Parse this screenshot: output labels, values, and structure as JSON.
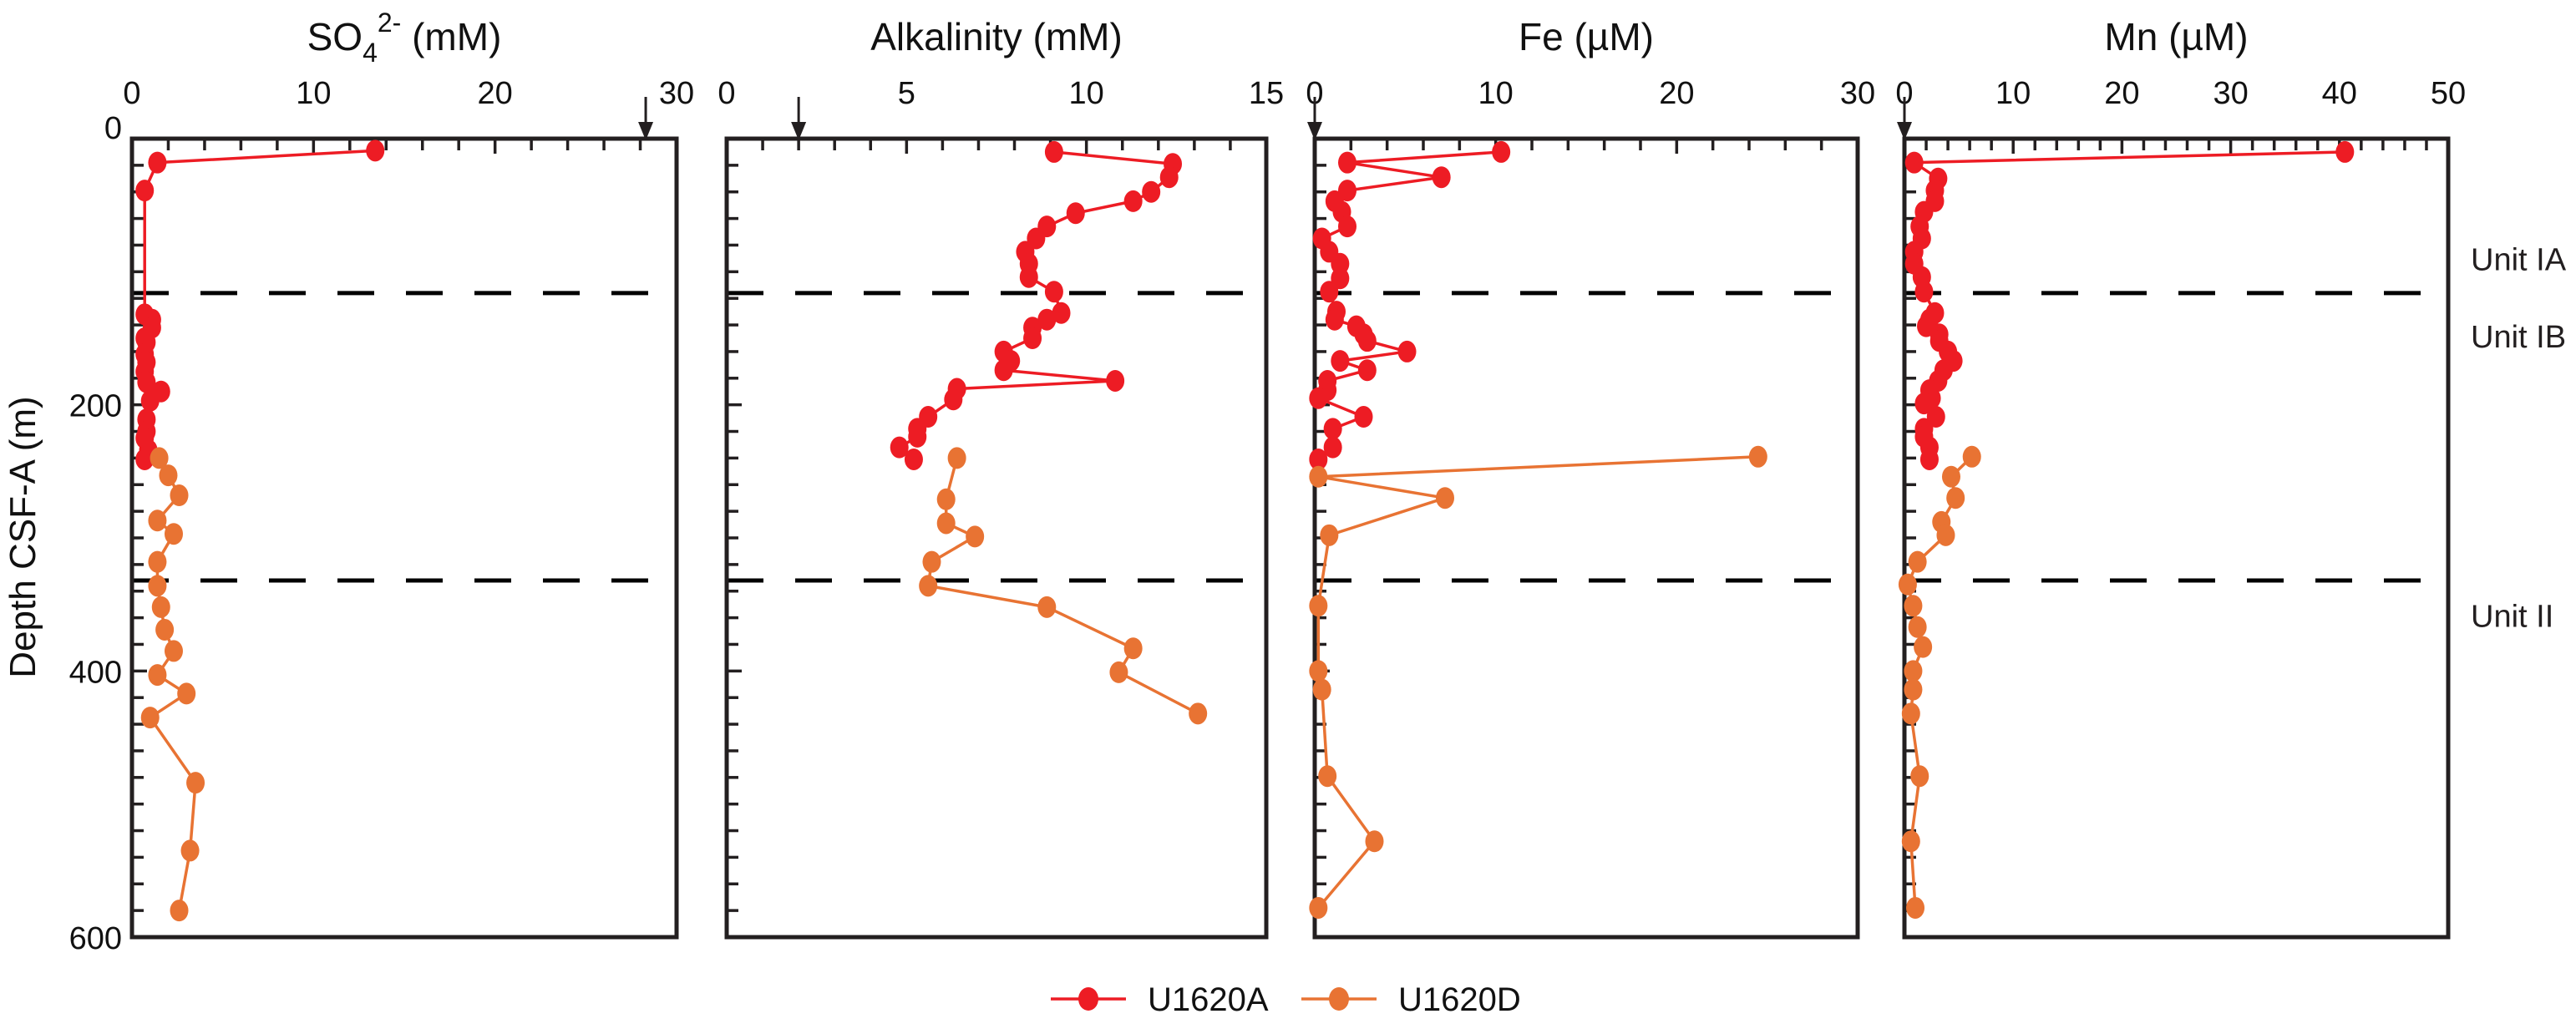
{
  "figure": {
    "ylabel": "Depth CSF-A (m)",
    "unit_labels": [
      {
        "text": "Unit IA",
        "anchor_depth": 90
      },
      {
        "text": "Unit IB",
        "anchor_depth": 148
      },
      {
        "text": "Unit II",
        "anchor_depth": 358
      }
    ],
    "legend": [
      {
        "name": "U1620A",
        "color": "#ed1c24"
      },
      {
        "name": "U1620D",
        "color": "#e87333"
      }
    ]
  },
  "chart_data": [
    {
      "type": "line",
      "title": "SO42- (mM)",
      "title_parts": {
        "base": "SO",
        "sub": "4",
        "sup": "2-",
        "unit": " (mM)"
      },
      "xlabel": "SO4 2- (mM)",
      "ylabel": "Depth CSF-A (m)",
      "xlim": [
        0,
        30
      ],
      "ylim": [
        600,
        0
      ],
      "xticks": [
        "0",
        "10",
        "20",
        "30"
      ],
      "xtick_values": [
        0,
        10,
        20,
        30
      ],
      "xminor_step": 2,
      "yticks": [
        "0",
        "200",
        "400",
        "600"
      ],
      "ytick_values": [
        0,
        200,
        400,
        600
      ],
      "yminor_step": 20,
      "seawater_arrow": 28.3,
      "unit_boundaries": [
        116,
        332
      ],
      "grid": false,
      "series": [
        {
          "name": "U1620A",
          "color": "#ed1c24",
          "depth": [
            9,
            18,
            39,
            132,
            136,
            142,
            150,
            153,
            162,
            168,
            175,
            183,
            190,
            197,
            211,
            220,
            225,
            234,
            241
          ],
          "values": [
            13.4,
            1.4,
            0.7,
            0.7,
            1.1,
            1.1,
            0.7,
            0.8,
            0.7,
            0.8,
            0.7,
            0.8,
            1.6,
            1.0,
            0.8,
            0.8,
            0.7,
            0.9,
            0.7
          ]
        },
        {
          "name": "U1620D",
          "color": "#e87333",
          "depth": [
            240,
            253,
            268,
            287,
            297,
            318,
            336,
            352,
            369,
            385,
            403,
            417,
            435,
            484,
            535,
            580
          ],
          "values": [
            1.5,
            2.0,
            2.6,
            1.4,
            2.3,
            1.4,
            1.4,
            1.6,
            1.8,
            2.3,
            1.4,
            3.0,
            1.0,
            3.5,
            3.2,
            2.6
          ]
        }
      ]
    },
    {
      "type": "line",
      "title": "Alkalinity (mM)",
      "xlabel": "Alkalinity (mM)",
      "ylabel": "Depth CSF-A (m)",
      "xlim": [
        0,
        15
      ],
      "ylim": [
        600,
        0
      ],
      "xticks": [
        "0",
        "5",
        "10",
        "15"
      ],
      "xtick_values": [
        0,
        5,
        10,
        15
      ],
      "xminor_step": 1,
      "yminor_step": 20,
      "seawater_arrow": 2.0,
      "unit_boundaries": [
        116,
        332
      ],
      "grid": false,
      "series": [
        {
          "name": "U1620A",
          "color": "#ed1c24",
          "depth": [
            10,
            19,
            29,
            40,
            47,
            56,
            66,
            75,
            85,
            94,
            104,
            115,
            131,
            136,
            142,
            150,
            160,
            167,
            174,
            182,
            188,
            196,
            209,
            218,
            224,
            232,
            241
          ],
          "values": [
            9.1,
            12.4,
            12.3,
            11.8,
            11.3,
            9.7,
            8.9,
            8.6,
            8.3,
            8.4,
            8.4,
            9.1,
            9.3,
            8.9,
            8.5,
            8.5,
            7.7,
            7.9,
            7.7,
            10.8,
            6.4,
            6.3,
            5.6,
            5.3,
            5.3,
            4.8,
            5.2
          ]
        },
        {
          "name": "U1620D",
          "color": "#e87333",
          "depth": [
            240,
            271,
            289,
            299,
            318,
            336,
            352,
            383,
            401,
            432
          ],
          "values": [
            6.4,
            6.1,
            6.1,
            6.9,
            5.7,
            5.6,
            8.9,
            11.3,
            10.9,
            13.1
          ]
        }
      ]
    },
    {
      "type": "line",
      "title": "Fe (µM)",
      "xlabel": "Fe (µM)",
      "ylabel": "Depth CSF-A (m)",
      "xlim": [
        0,
        30
      ],
      "ylim": [
        600,
        0
      ],
      "xticks": [
        "0",
        "10",
        "20",
        "30"
      ],
      "xtick_values": [
        0,
        10,
        20,
        30
      ],
      "xminor_step": 2,
      "yminor_step": 20,
      "seawater_arrow": 0,
      "unit_boundaries": [
        116,
        332
      ],
      "grid": false,
      "series": [
        {
          "name": "U1620A",
          "color": "#ed1c24",
          "depth": [
            10,
            18,
            29,
            39,
            47,
            55,
            66,
            75,
            85,
            94,
            105,
            115,
            130,
            136,
            141,
            147,
            152,
            160,
            167,
            174,
            182,
            189,
            195,
            209,
            218,
            232,
            241
          ],
          "values": [
            10.3,
            1.8,
            7.0,
            1.8,
            1.1,
            1.5,
            1.8,
            0.4,
            0.8,
            1.4,
            1.4,
            0.8,
            1.2,
            1.1,
            2.3,
            2.7,
            2.9,
            5.1,
            1.4,
            2.9,
            0.7,
            0.7,
            0.2,
            2.7,
            1.0,
            1.0,
            0.2
          ]
        },
        {
          "name": "U1620D",
          "color": "#e87333",
          "depth": [
            239,
            254,
            270,
            298,
            351,
            400,
            414,
            479,
            528,
            578
          ],
          "values": [
            24.5,
            0.2,
            7.2,
            0.8,
            0.2,
            0.2,
            0.4,
            0.7,
            3.3,
            0.2
          ]
        }
      ]
    },
    {
      "type": "line",
      "title": "Mn (µM)",
      "xlabel": "Mn (µM)",
      "ylabel": "Depth CSF-A (m)",
      "xlim": [
        0,
        50
      ],
      "ylim": [
        600,
        0
      ],
      "xticks": [
        "0",
        "10",
        "20",
        "30",
        "40",
        "50"
      ],
      "xtick_values": [
        0,
        10,
        20,
        30,
        40,
        50
      ],
      "xminor_step": 2,
      "yminor_step": 20,
      "seawater_arrow": 0,
      "unit_boundaries": [
        116,
        332
      ],
      "grid": false,
      "series": [
        {
          "name": "U1620A",
          "color": "#ed1c24",
          "depth": [
            10,
            18,
            30,
            39,
            47,
            55,
            66,
            75,
            85,
            94,
            104,
            115,
            131,
            136,
            141,
            147,
            152,
            160,
            167,
            174,
            182,
            189,
            195,
            199,
            209,
            218,
            224,
            232,
            241
          ],
          "values": [
            40.5,
            0.9,
            3.1,
            2.8,
            2.8,
            1.8,
            1.4,
            1.6,
            0.9,
            0.9,
            1.6,
            1.8,
            2.8,
            2.3,
            2.0,
            3.2,
            3.2,
            4.0,
            4.5,
            3.6,
            3.1,
            2.3,
            2.5,
            1.8,
            2.9,
            1.8,
            1.8,
            2.3,
            2.3
          ]
        },
        {
          "name": "U1620D",
          "color": "#e87333",
          "depth": [
            239,
            254,
            270,
            288,
            298,
            318,
            335,
            351,
            367,
            382,
            400,
            414,
            432,
            479,
            528,
            578
          ],
          "values": [
            6.2,
            4.3,
            4.7,
            3.4,
            3.8,
            1.2,
            0.3,
            0.8,
            1.2,
            1.7,
            0.8,
            0.8,
            0.6,
            1.4,
            0.6,
            1.0
          ]
        }
      ]
    }
  ]
}
